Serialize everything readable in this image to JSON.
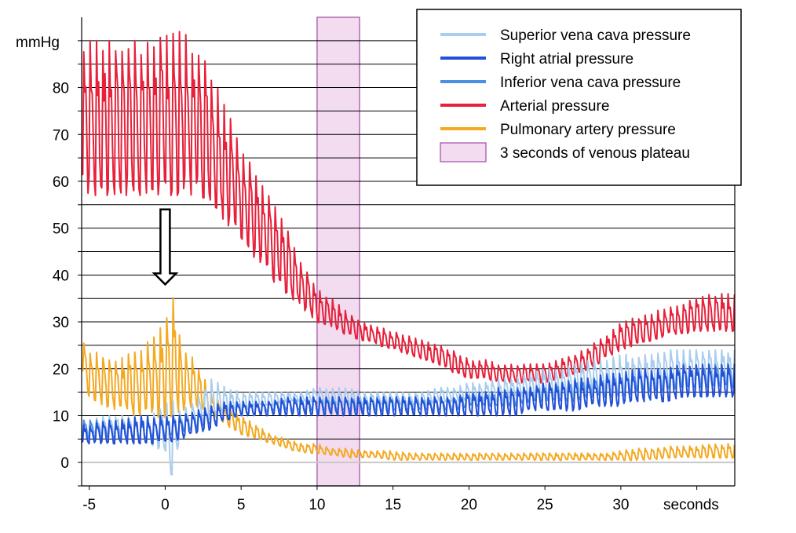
{
  "chart_data": {
    "type": "line",
    "xlabel": "seconds",
    "ylabel": "mmHg",
    "xlim": [
      -5.5,
      37.5
    ],
    "ylim": [
      -5,
      95
    ],
    "x_ticks": [
      {
        "value": -5,
        "label": "-5"
      },
      {
        "value": 0,
        "label": "0"
      },
      {
        "value": 5,
        "label": "5"
      },
      {
        "value": 10,
        "label": "10"
      },
      {
        "value": 15,
        "label": "15"
      },
      {
        "value": 20,
        "label": "20"
      },
      {
        "value": 25,
        "label": "25"
      },
      {
        "value": 30,
        "label": "30"
      }
    ],
    "y_ticks": [
      {
        "value": 0,
        "label": "0"
      },
      {
        "value": 10,
        "label": "10"
      },
      {
        "value": 20,
        "label": "20"
      },
      {
        "value": 30,
        "label": "30"
      },
      {
        "value": 40,
        "label": "40"
      },
      {
        "value": 50,
        "label": "50"
      },
      {
        "value": 60,
        "label": "60"
      },
      {
        "value": 70,
        "label": "70"
      },
      {
        "value": 80,
        "label": "80"
      }
    ],
    "grid": {
      "horizontal": true,
      "every": 5,
      "zero_line": true
    },
    "highlight": {
      "x": [
        10,
        12.8
      ],
      "label": "3 seconds of venous plateau",
      "color": "#f3dcf0",
      "border": "#a24aa2"
    },
    "annotation": {
      "type": "down-arrow",
      "x": 0,
      "y_top": 54,
      "y_bottom": 38
    },
    "legend": {
      "position": "top-right",
      "items": [
        {
          "key": "svc",
          "label": "Superior vena cava pressure",
          "color": "#a9cdee",
          "kind": "line"
        },
        {
          "key": "ra",
          "label": "Right atrial pressure",
          "color": "#2350d8",
          "kind": "line"
        },
        {
          "key": "ivc",
          "label": "Inferior vena cava pressure",
          "color": "#4a8fe3",
          "kind": "line"
        },
        {
          "key": "art",
          "label": "Arterial pressure",
          "color": "#e8203a",
          "kind": "line"
        },
        {
          "key": "pa",
          "label": "Pulmonary artery pressure",
          "color": "#f4a922",
          "kind": "line"
        },
        {
          "key": "plateau",
          "label": "3 seconds of venous plateau",
          "color": "#f3dcf0",
          "kind": "box"
        }
      ]
    },
    "series": [
      {
        "key": "art",
        "name": "Arterial pressure",
        "color": "#e8203a",
        "x": [
          -5.5,
          -5,
          -4,
          -3,
          -2,
          -1,
          0,
          1,
          2,
          3,
          4,
          5,
          6,
          7,
          8,
          9,
          10,
          11,
          12,
          13,
          14,
          15,
          16,
          17,
          18,
          19,
          20,
          21,
          22,
          23,
          24,
          25,
          26,
          27,
          28,
          29,
          30,
          31,
          32,
          33,
          34,
          35,
          36,
          37,
          37.5
        ],
        "low": [
          60,
          57,
          57,
          57,
          57,
          57,
          57,
          57,
          57,
          56,
          51,
          48,
          43,
          39,
          36,
          33,
          30,
          29,
          27,
          26,
          25,
          24,
          23,
          22,
          21,
          19,
          18,
          18,
          17,
          17,
          17,
          17,
          18,
          19,
          20,
          22,
          24,
          25,
          26,
          27,
          27,
          28,
          28,
          28,
          28
        ],
        "high": [
          90,
          90,
          90,
          90,
          90,
          90,
          91,
          92,
          90,
          83,
          76,
          68,
          61,
          56,
          50,
          43,
          37,
          35,
          32,
          30,
          29,
          28,
          27,
          26,
          25,
          24,
          22,
          22,
          21,
          21,
          21,
          21,
          22,
          23,
          25,
          27,
          30,
          31,
          32,
          33,
          34,
          35,
          36,
          36,
          36
        ],
        "beat_period": 0.42
      },
      {
        "key": "pa",
        "name": "Pulmonary artery pressure",
        "color": "#f4a922",
        "x": [
          -5.5,
          -5,
          -4,
          -3,
          -2,
          -1,
          0,
          0.5,
          1,
          2,
          3,
          4,
          5,
          6,
          7,
          8,
          9,
          10,
          11,
          12,
          13,
          14,
          15,
          16,
          17,
          18,
          19,
          20,
          21,
          22,
          23,
          24,
          25,
          26,
          27,
          28,
          29,
          30,
          31,
          32,
          33,
          34,
          35,
          36,
          37,
          37.5
        ],
        "low": [
          20,
          14,
          12,
          11,
          10,
          10,
          9,
          10,
          11,
          12,
          10,
          8,
          6,
          5,
          4,
          3,
          2,
          2,
          1.5,
          1,
          1,
          1,
          0.5,
          0.5,
          0.5,
          0.5,
          0.5,
          0.5,
          0.5,
          0.5,
          0.5,
          0.5,
          0.5,
          0.5,
          0.5,
          0.5,
          0.5,
          0.5,
          0.5,
          0.5,
          1,
          1,
          1,
          1,
          1,
          1
        ],
        "high": [
          26,
          24,
          23,
          22,
          24,
          26,
          30,
          36,
          26,
          22,
          15,
          12,
          10,
          8,
          6,
          5,
          4,
          4,
          3,
          3,
          2.5,
          2.5,
          2.5,
          2,
          2,
          2,
          2,
          2,
          2,
          2,
          2,
          2,
          2,
          2,
          2,
          2,
          2,
          2.5,
          3,
          3,
          3.5,
          3.5,
          3.5,
          4,
          4,
          4
        ],
        "beat_period": 0.42
      },
      {
        "key": "svc",
        "name": "Superior vena cava pressure",
        "color": "#a9cdee",
        "x": [
          -5.5,
          -5,
          -4,
          -3,
          -2,
          -1,
          0,
          0.3,
          1,
          2,
          3,
          4,
          5,
          6,
          7,
          8,
          9,
          10,
          11,
          12,
          13,
          14,
          15,
          16,
          17,
          18,
          19,
          20,
          21,
          22,
          23,
          24,
          25,
          26,
          27,
          28,
          29,
          30,
          31,
          32,
          33,
          34,
          35,
          36,
          37,
          37.5
        ],
        "low": [
          6,
          6,
          6,
          6,
          5,
          4,
          2,
          -5,
          6,
          7,
          9,
          11,
          11,
          12,
          12,
          13,
          13,
          13,
          12,
          12,
          12,
          12,
          12,
          12,
          12,
          13,
          13,
          13,
          13,
          13,
          14,
          14,
          14,
          14,
          14,
          15,
          15,
          15,
          15,
          16,
          16,
          16,
          17,
          17,
          17,
          17
        ],
        "high": [
          9,
          9,
          10,
          10,
          10,
          10,
          12,
          14,
          11,
          13,
          18,
          16,
          15,
          15,
          15,
          15,
          15,
          16,
          16,
          16,
          15,
          15,
          15,
          15,
          15,
          16,
          16,
          17,
          17,
          18,
          18,
          19,
          20,
          20,
          21,
          22,
          22,
          23,
          23,
          23,
          24,
          24,
          24,
          24,
          24,
          24
        ],
        "beat_period": 0.42
      },
      {
        "key": "ivc",
        "name": "Inferior vena cava pressure",
        "color": "#4a8fe3",
        "x": [
          -5.5,
          -5,
          -4,
          -3,
          -2,
          -1,
          0,
          1,
          2,
          3,
          4,
          5,
          6,
          7,
          8,
          9,
          10,
          11,
          12,
          13,
          14,
          15,
          16,
          17,
          18,
          19,
          20,
          21,
          22,
          23,
          24,
          25,
          26,
          27,
          28,
          29,
          30,
          31,
          32,
          33,
          34,
          35,
          36,
          37,
          37.5
        ],
        "low": [
          5,
          5,
          5,
          5,
          5,
          5,
          5,
          6,
          7,
          8,
          9,
          10,
          10,
          11,
          11,
          11,
          11,
          11,
          11,
          11,
          11,
          11,
          11,
          11,
          11,
          11,
          12,
          12,
          12,
          12,
          13,
          13,
          13,
          13,
          14,
          14,
          14,
          15,
          15,
          15,
          16,
          16,
          16,
          16,
          16
        ],
        "high": [
          9,
          9,
          9,
          9,
          9,
          9,
          10,
          10,
          11,
          12,
          13,
          13,
          13,
          13,
          14,
          14,
          14,
          14,
          14,
          14,
          14,
          14,
          14,
          14,
          14,
          14,
          15,
          15,
          15,
          16,
          16,
          17,
          17,
          18,
          18,
          19,
          19,
          20,
          20,
          20,
          21,
          21,
          21,
          21,
          21
        ],
        "beat_period": 0.42
      },
      {
        "key": "ra",
        "name": "Right atrial pressure",
        "color": "#2350d8",
        "x": [
          -5.5,
          -5,
          -4,
          -3,
          -2,
          -1,
          0,
          1,
          2,
          3,
          4,
          5,
          6,
          7,
          8,
          9,
          10,
          11,
          12,
          13,
          14,
          15,
          16,
          17,
          18,
          19,
          20,
          21,
          22,
          23,
          24,
          25,
          26,
          27,
          28,
          29,
          30,
          31,
          32,
          33,
          34,
          35,
          36,
          37,
          37.5
        ],
        "low": [
          4,
          4,
          4,
          4,
          4,
          4,
          4,
          5,
          6,
          7,
          9,
          10,
          10,
          10,
          10,
          10,
          10,
          10,
          10,
          10,
          10,
          10,
          10,
          10,
          10,
          10,
          10,
          10,
          10,
          10,
          11,
          11,
          11,
          11,
          12,
          12,
          12,
          13,
          13,
          13,
          14,
          14,
          14,
          14,
          14
        ],
        "high": [
          8,
          8,
          9,
          9,
          10,
          10,
          10,
          10,
          11,
          12,
          13,
          13,
          13,
          13,
          14,
          14,
          14,
          14,
          14,
          14,
          14,
          14,
          14,
          14,
          14,
          14,
          15,
          15,
          16,
          16,
          16,
          17,
          17,
          18,
          18,
          19,
          19,
          20,
          20,
          20,
          21,
          21,
          21,
          21,
          21
        ],
        "beat_period": 0.42
      }
    ]
  }
}
